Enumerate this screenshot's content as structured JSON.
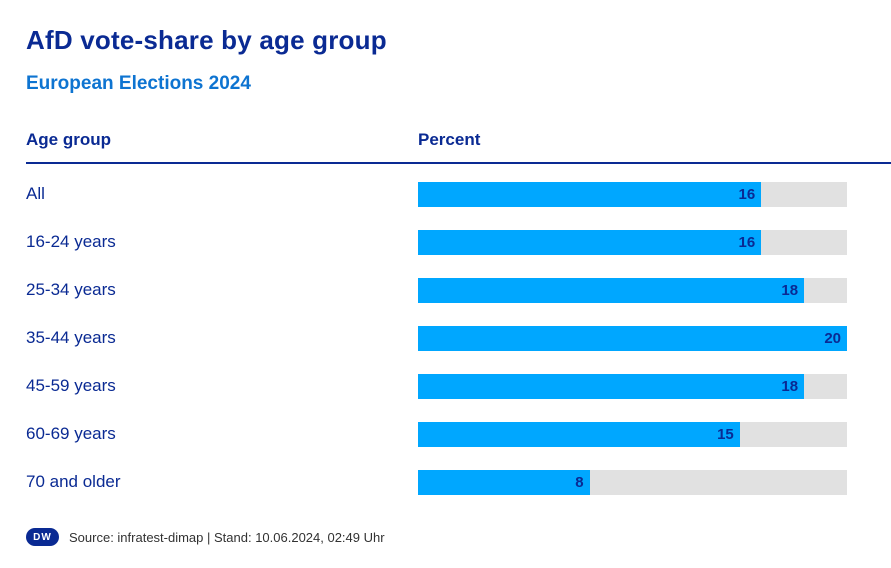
{
  "header": {
    "title": "AfD vote-share by age group",
    "subtitle": "European Elections 2024"
  },
  "table": {
    "age_group_header": "Age group",
    "percent_header": "Percent"
  },
  "chart_data": {
    "type": "bar",
    "orientation": "horizontal",
    "title": "AfD vote-share by age group",
    "subtitle": "European Elections 2024",
    "categories": [
      "All",
      "16-24 years",
      "25-34 years",
      "35-44 years",
      "45-59 years",
      "60-69 years",
      "70 and older"
    ],
    "values": [
      16,
      16,
      18,
      20,
      18,
      15,
      8
    ],
    "xlabel": "Percent",
    "ylabel": "Age group",
    "xlim": [
      0,
      20
    ],
    "grid": false,
    "legend": false,
    "bar_color": "#00a7ff",
    "track_color": "#e1e1e1",
    "value_label_color": "#0a2a93"
  },
  "footer": {
    "logo_text": "DW",
    "source_text": "Source: infratest-dimap | Stand: 10.06.2024, 02:49 Uhr"
  },
  "colors": {
    "title_color": "#0a2a93",
    "subtitle_color": "#0e74d1",
    "bar_color": "#00a7ff",
    "track_color": "#e1e1e1",
    "footer_color": "#323232"
  }
}
